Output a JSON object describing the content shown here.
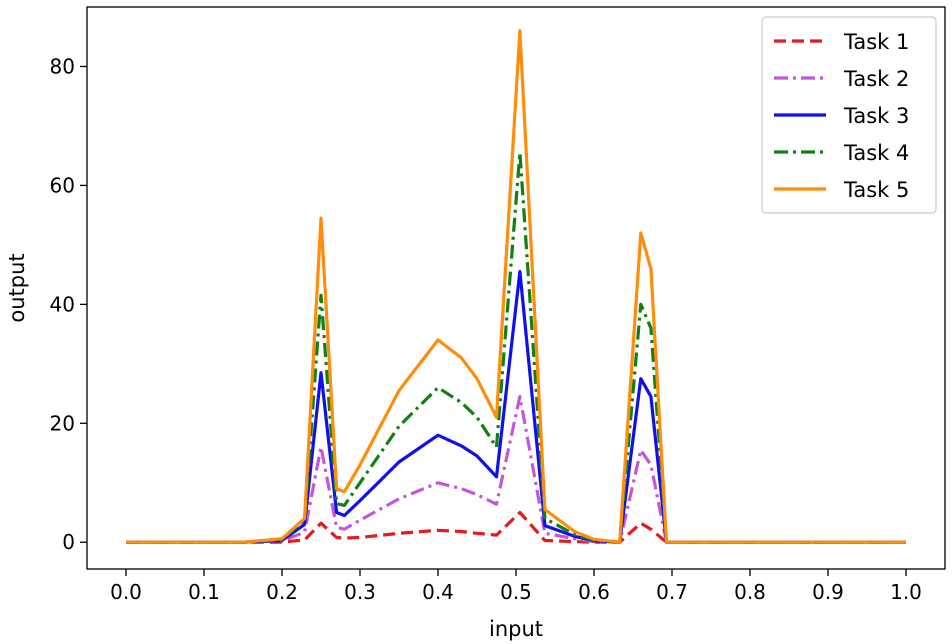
{
  "chart_data": {
    "type": "line",
    "title": "",
    "xlabel": "input",
    "ylabel": "output",
    "xlim": [
      -0.05,
      1.05
    ],
    "ylim": [
      -4.5,
      90
    ],
    "xticks": [
      "0.0",
      "0.1",
      "0.2",
      "0.3",
      "0.4",
      "0.5",
      "0.6",
      "0.7",
      "0.8",
      "0.9",
      "1.0"
    ],
    "yticks": [
      "0",
      "20",
      "40",
      "60",
      "80"
    ],
    "grid": false,
    "legend_position": "top-right",
    "x": [
      0.0,
      0.05,
      0.1,
      0.15,
      0.2,
      0.229,
      0.25,
      0.27,
      0.28,
      0.3,
      0.35,
      0.4,
      0.43,
      0.45,
      0.475,
      0.505,
      0.537,
      0.575,
      0.6,
      0.633,
      0.66,
      0.673,
      0.693,
      0.75,
      0.8,
      0.85,
      0.9,
      0.95,
      1.0
    ],
    "series": [
      {
        "name": "Task 1",
        "color": "#e41a1c",
        "dash": "dashed",
        "values": [
          0,
          0,
          0,
          0,
          0,
          0.4,
          3.2,
          0.8,
          0.7,
          0.8,
          1.5,
          2.0,
          1.8,
          1.5,
          1.2,
          5.0,
          0.3,
          0.1,
          0.0,
          0.0,
          3.2,
          2.2,
          0,
          0,
          0,
          0,
          0,
          0,
          0
        ]
      },
      {
        "name": "Task 2",
        "color": "#c158d6",
        "dash": "dashdot",
        "values": [
          0,
          0,
          0,
          0,
          0.2,
          1.7,
          16.0,
          2.5,
          2.2,
          3.7,
          7.3,
          10.0,
          9.0,
          8.0,
          6.4,
          24.5,
          1.5,
          0.6,
          0.1,
          0.0,
          15.5,
          13.0,
          0,
          0,
          0,
          0,
          0,
          0,
          0
        ]
      },
      {
        "name": "Task 3",
        "color": "#1010ee",
        "dash": "solid",
        "values": [
          0,
          0,
          0,
          0,
          0.3,
          3.0,
          28.5,
          5.0,
          4.5,
          7.0,
          13.5,
          18.0,
          16.2,
          14.5,
          11.0,
          45.5,
          2.8,
          1.0,
          0.3,
          0.0,
          27.5,
          24.5,
          0,
          0,
          0,
          0,
          0,
          0,
          0
        ]
      },
      {
        "name": "Task 4",
        "color": "#138013",
        "dash": "dashdot",
        "values": [
          0,
          0,
          0,
          0,
          0.4,
          3.8,
          41.5,
          6.5,
          6.2,
          10.0,
          19.5,
          26.0,
          23.5,
          21.0,
          16.0,
          65.5,
          4.0,
          1.3,
          0.4,
          0.0,
          40.0,
          36.0,
          0,
          0,
          0,
          0,
          0,
          0,
          0
        ]
      },
      {
        "name": "Task 5",
        "color": "#ff8c0a",
        "dash": "solid",
        "values": [
          0,
          0,
          0,
          0,
          0.6,
          4.0,
          54.5,
          9.0,
          8.5,
          13.0,
          25.5,
          34.0,
          31.0,
          27.5,
          21.0,
          86.0,
          5.5,
          1.8,
          0.5,
          0.0,
          52.0,
          46.0,
          0,
          0,
          0,
          0,
          0,
          0,
          0
        ]
      }
    ]
  }
}
